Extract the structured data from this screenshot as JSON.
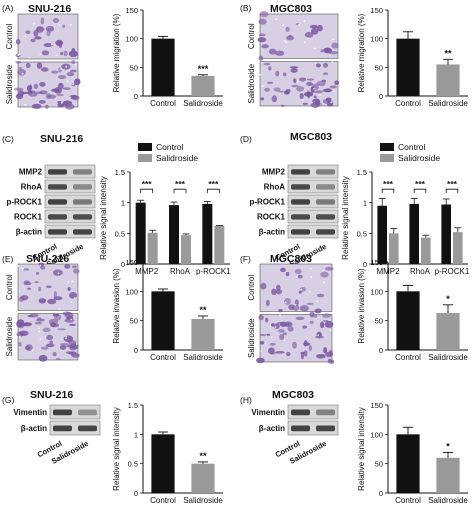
{
  "figure": {
    "colors": {
      "control": "#111111",
      "salidroside": "#9a9a9a",
      "stain": "#7d5aa3",
      "stain_bg": "#d7cfe3",
      "blot_band": "#3a3a3a",
      "blot_bg": "#d9d9d9"
    },
    "panels": [
      {
        "letter": "(A)",
        "cell_line": "SNU-216",
        "kind": "micro",
        "image_labels": [
          "Control",
          "Salidroside"
        ],
        "chart_data": {
          "type": "bar",
          "ylabel": "Relative migration (%)",
          "ylim": [
            0,
            150
          ],
          "yticks": [
            0,
            50,
            100,
            150
          ],
          "categories": [
            "Control",
            "Salidroside"
          ],
          "values": [
            100,
            35
          ],
          "errors": [
            4,
            2
          ],
          "annotations": [
            "",
            "***"
          ]
        }
      },
      {
        "letter": "(B)",
        "cell_line": "MGC803",
        "kind": "micro",
        "image_labels": [
          "Control",
          "Salidroside"
        ],
        "chart_data": {
          "type": "bar",
          "ylabel": "Relative migration (%)",
          "ylim": [
            0,
            150
          ],
          "yticks": [
            0,
            50,
            100,
            150
          ],
          "categories": [
            "Control",
            "Salidroside"
          ],
          "values": [
            100,
            55
          ],
          "errors": [
            12,
            9
          ],
          "annotations": [
            "",
            "**"
          ]
        }
      },
      {
        "letter": "(C)",
        "cell_line": "SNU-216",
        "kind": "blot",
        "blot_labels": [
          "MMP2",
          "RhoA",
          "p-ROCK1",
          "ROCK1",
          "β-actin"
        ],
        "lane_labels": [
          "Control",
          "Salidroside"
        ],
        "chart_data": {
          "type": "bar",
          "ylabel": "Relative signal intensity",
          "ylim": [
            0,
            1.5
          ],
          "yticks": [
            0.0,
            0.5,
            1.0,
            1.5
          ],
          "categories": [
            "MMP2",
            "RhoA",
            "p-ROCK1"
          ],
          "series": [
            {
              "name": "Control",
              "values": [
                1.0,
                0.96,
                0.98
              ],
              "errors": [
                0.04,
                0.05,
                0.04
              ]
            },
            {
              "name": "Salidroside",
              "values": [
                0.51,
                0.47,
                0.62
              ],
              "errors": [
                0.04,
                0.02,
                0.01
              ]
            }
          ],
          "annotations": [
            "***",
            "***",
            "***"
          ],
          "legend": "top"
        }
      },
      {
        "letter": "(D)",
        "cell_line": "MGC803",
        "kind": "blot",
        "blot_labels": [
          "MMP2",
          "RhoA",
          "p-ROCK1",
          "ROCK1",
          "β-actin"
        ],
        "lane_labels": [
          "Control",
          "Salidroside"
        ],
        "chart_data": {
          "type": "bar",
          "ylabel": "Relative signal intensity",
          "ylim": [
            0,
            1.5
          ],
          "yticks": [
            0.0,
            0.5,
            1.0,
            1.5
          ],
          "categories": [
            "MMP2",
            "RhoA",
            "p-ROCK1"
          ],
          "series": [
            {
              "name": "Control",
              "values": [
                0.95,
                0.98,
                0.97
              ],
              "errors": [
                0.12,
                0.09,
                0.09
              ]
            },
            {
              "name": "Salidroside",
              "values": [
                0.5,
                0.43,
                0.52
              ],
              "errors": [
                0.08,
                0.04,
                0.07
              ]
            }
          ],
          "annotations": [
            "***",
            "***",
            "***"
          ],
          "legend": "top"
        }
      },
      {
        "letter": "(E)",
        "cell_line": "SNU-216",
        "kind": "micro",
        "image_labels": [
          "Control",
          "Salidroside"
        ],
        "chart_data": {
          "type": "bar",
          "ylabel": "Relative invasion (%)",
          "ylim": [
            0,
            150
          ],
          "yticks": [
            0,
            50,
            100,
            150
          ],
          "categories": [
            "Control",
            "Salidroside"
          ],
          "values": [
            100,
            53
          ],
          "errors": [
            4,
            5
          ],
          "annotations": [
            "",
            "**"
          ]
        }
      },
      {
        "letter": "(F)",
        "cell_line": "MGC803",
        "kind": "micro",
        "image_labels": [
          "Control",
          "Salidroside"
        ],
        "chart_data": {
          "type": "bar",
          "ylabel": "Relative invasion (%)",
          "ylim": [
            0,
            150
          ],
          "yticks": [
            0,
            50,
            100,
            150
          ],
          "categories": [
            "Control",
            "Salidroside"
          ],
          "values": [
            100,
            63
          ],
          "errors": [
            10,
            14
          ],
          "annotations": [
            "",
            "*"
          ]
        }
      },
      {
        "letter": "(G)",
        "cell_line": "SNU-216",
        "kind": "blot",
        "blot_labels": [
          "Vimentin",
          "β-actin"
        ],
        "lane_labels": [
          "Control",
          "Salidroside"
        ],
        "chart_data": {
          "type": "bar",
          "ylabel": "Relative signal intensity",
          "ylim": [
            0,
            1.5
          ],
          "yticks": [
            0.0,
            0.5,
            1.0,
            1.5
          ],
          "categories": [
            "Control",
            "Salidroside"
          ],
          "values": [
            1.0,
            0.5
          ],
          "errors": [
            0.04,
            0.03
          ],
          "annotations": [
            "",
            "**"
          ]
        }
      },
      {
        "letter": "(H)",
        "cell_line": "MGC803",
        "kind": "blot",
        "blot_labels": [
          "Vimentin",
          "β-actin"
        ],
        "lane_labels": [
          "Control",
          "Salidroside"
        ],
        "chart_data": {
          "type": "bar",
          "ylabel": "Relative signal intensity",
          "ylim": [
            0,
            150
          ],
          "yticks": [
            0,
            50,
            100,
            150
          ],
          "categories": [
            "Control",
            "Salidroside"
          ],
          "values": [
            100,
            60
          ],
          "errors": [
            12,
            9
          ],
          "annotations": [
            "",
            "*"
          ]
        }
      }
    ]
  }
}
